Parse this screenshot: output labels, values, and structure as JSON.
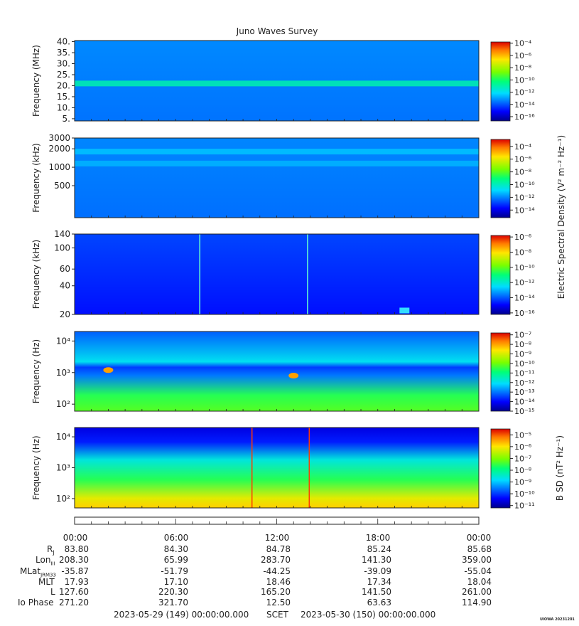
{
  "title": "Juno Waves Survey",
  "stamp": "UIOWA 20231201",
  "colorbar_labels": {
    "electric": "Electric Spectral Density (V² m⁻² Hz⁻¹)",
    "magnetic": "B SD (nT² Hz⁻¹)"
  },
  "chart_data": [
    {
      "type": "heatmap",
      "panel": 1,
      "ylabel": "Frequency (MHz)",
      "ylim": [
        4,
        40.5
      ],
      "yticks": [
        "40.",
        "35.",
        "30.",
        "25.",
        "20.",
        "15.",
        "10.",
        "5."
      ],
      "ytick_values": [
        40,
        35,
        30,
        25,
        20,
        15,
        10,
        5
      ],
      "scale": "linear",
      "colorbar": {
        "ticks": [
          "10⁻⁴",
          "10⁻⁶",
          "10⁻⁸",
          "10⁻¹⁰",
          "10⁻¹²",
          "10⁻¹⁴",
          "10⁻¹⁶"
        ],
        "exponents": [
          -4,
          -6,
          -8,
          -10,
          -12,
          -14,
          -16
        ],
        "range": [
          -16.7,
          -3.8
        ]
      },
      "features": [
        {
          "name": "band",
          "freq": 21,
          "level": -11
        }
      ],
      "background_level": -13.3
    },
    {
      "type": "heatmap",
      "panel": 2,
      "ylabel": "Frequency (kHz)",
      "ylim": [
        150,
        3000
      ],
      "yticks": [
        "3000",
        "2000",
        "1000",
        "500"
      ],
      "ytick_values": [
        3000,
        2000,
        1000,
        500
      ],
      "scale": "log",
      "colorbar": {
        "ticks": [
          "10⁻⁴",
          "10⁻⁶",
          "10⁻⁸",
          "10⁻¹⁰",
          "10⁻¹²",
          "10⁻¹⁴"
        ],
        "exponents": [
          -4,
          -6,
          -8,
          -10,
          -12,
          -14
        ],
        "range": [
          -15.2,
          -2.9
        ]
      },
      "features": [
        {
          "name": "band",
          "freq": 1800,
          "level": -11.2
        },
        {
          "name": "band",
          "freq": 1150,
          "level": -11.4
        }
      ],
      "background_level": -12
    },
    {
      "type": "heatmap",
      "panel": 3,
      "ylabel": "Frequency (kHz)",
      "ylim": [
        20,
        140
      ],
      "yticks": [
        "140",
        "100",
        "60",
        "40",
        "20"
      ],
      "ytick_values": [
        140,
        100,
        60,
        40,
        20
      ],
      "scale": "log",
      "colorbar": {
        "ticks": [
          "10⁻⁶",
          "10⁻⁸",
          "10⁻¹⁰",
          "10⁻¹²",
          "10⁻¹⁴",
          "10⁻¹⁶"
        ],
        "exponents": [
          -6,
          -8,
          -10,
          -12,
          -14,
          -16
        ],
        "range": [
          -16.2,
          -5.8
        ]
      },
      "features": [
        {
          "name": "spike",
          "time_h": 13.8
        },
        {
          "name": "spike",
          "time_h": 7.4
        },
        {
          "name": "blob",
          "time_h": 19.5,
          "freq": 22
        }
      ],
      "background_level": -14.5
    },
    {
      "type": "heatmap",
      "panel": 4,
      "ylabel": "Frequency (Hz)",
      "ylim": [
        60,
        20000
      ],
      "yticks": [
        "10⁴",
        "10³",
        "10²"
      ],
      "ytick_values": [
        10000,
        1000,
        100
      ],
      "scale": "log",
      "colorbar": {
        "ticks": [
          "10⁻⁷",
          "10⁻⁸",
          "10⁻⁹",
          "10⁻¹⁰",
          "10⁻¹¹",
          "10⁻¹²",
          "10⁻¹³",
          "10⁻¹⁴",
          "10⁻¹⁵"
        ],
        "exponents": [
          -7,
          -8,
          -9,
          -10,
          -11,
          -12,
          -13,
          -14,
          -15
        ],
        "range": [
          -15,
          -6.8
        ]
      },
      "features": [
        {
          "name": "emission",
          "time_h": 2.0,
          "freq": 1200
        },
        {
          "name": "emission",
          "time_h": 13.0,
          "freq": 800
        }
      ],
      "background_level": -12.5
    },
    {
      "type": "heatmap",
      "panel": 5,
      "ylabel": "Frequency (Hz)",
      "ylim": [
        50,
        20000
      ],
      "yticks": [
        "10⁴",
        "10³",
        "10²"
      ],
      "ytick_values": [
        10000,
        1000,
        100
      ],
      "scale": "log",
      "colorbar": {
        "ticks": [
          "10⁻⁵",
          "10⁻⁶",
          "10⁻⁷",
          "10⁻⁸",
          "10⁻⁹",
          "10⁻¹⁰",
          "10⁻¹¹"
        ],
        "exponents": [
          -5,
          -6,
          -7,
          -8,
          -9,
          -10,
          -11
        ],
        "range": [
          -11.2,
          -4.5
        ]
      },
      "features": [
        {
          "name": "spike",
          "time_h": 10.5
        },
        {
          "name": "spike",
          "time_h": 13.9
        }
      ],
      "background_level": -8
    }
  ],
  "ephemeris": {
    "time_labels": [
      "00:00",
      "06:00",
      "12:00",
      "18:00",
      "00:00"
    ],
    "rows": [
      {
        "label": "R",
        "sub": "J",
        "values": [
          "83.80",
          "84.30",
          "84.78",
          "85.24",
          "85.68"
        ]
      },
      {
        "label": "Lon",
        "sub": "III",
        "values": [
          "208.30",
          "65.99",
          "283.70",
          "141.30",
          "359.00"
        ]
      },
      {
        "label": "MLat",
        "sub": "JRM33",
        "values": [
          "-35.87",
          "-51.79",
          "-44.25",
          "-39.09",
          "-55.04"
        ]
      },
      {
        "label": "MLT",
        "sub": "",
        "values": [
          "17.93",
          "17.10",
          "18.46",
          "17.34",
          "18.04"
        ]
      },
      {
        "label": "L",
        "sub": "",
        "values": [
          "127.60",
          "220.30",
          "165.20",
          "141.50",
          "261.00"
        ]
      },
      {
        "label": "Io Phase",
        "sub": "",
        "values": [
          "271.20",
          "321.70",
          "12.50",
          "63.63",
          "114.90"
        ]
      }
    ],
    "start": "2023-05-29 (149) 00:00:00.000",
    "scet": "SCET",
    "end": "2023-05-30 (150) 00:00:00.000"
  }
}
